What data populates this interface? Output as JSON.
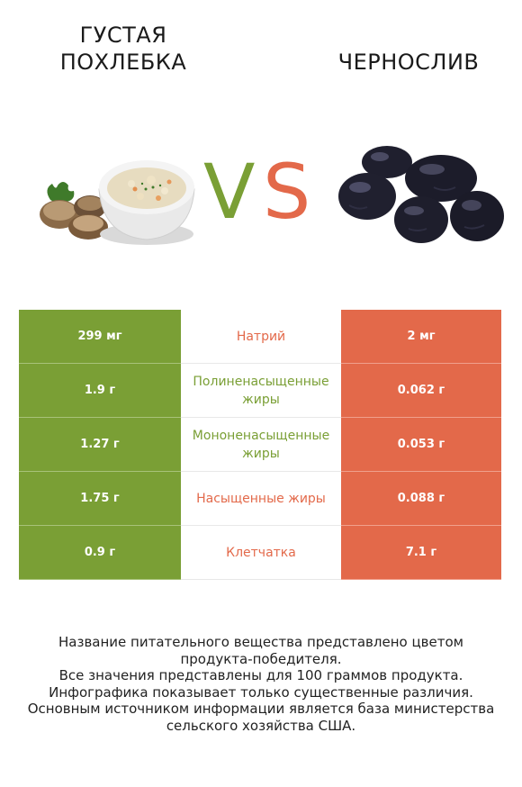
{
  "left_food": {
    "name": "ГУСТАЯ ПОХЛЕБКА",
    "color": "#7a9f35"
  },
  "right_food": {
    "name": "ЧЕРНОСЛИВ",
    "color": "#e3694a"
  },
  "vs": {
    "v": "V",
    "s": "S"
  },
  "rows": [
    {
      "left": "299 мг",
      "label": "Натрий",
      "right": "2 мг",
      "winner": "right"
    },
    {
      "left": "1.9 г",
      "label": "Полиненасыщенные жиры",
      "right": "0.062 г",
      "winner": "left"
    },
    {
      "left": "1.27 г",
      "label": "Мононенасыщенные жиры",
      "right": "0.053 г",
      "winner": "left"
    },
    {
      "left": "1.75 г",
      "label": "Насыщенные жиры",
      "right": "0.088 г",
      "winner": "right"
    },
    {
      "left": "0.9 г",
      "label": "Клетчатка",
      "right": "7.1 г",
      "winner": "right"
    }
  ],
  "footer": [
    "Название питательного вещества представлено цветом",
    "продукта-победителя.",
    "Все значения представлены для 100 граммов продукта.",
    "Инфографика показывает только существенные различия.",
    "Основным источником информации является база министерства",
    "сельского хозяйства США."
  ]
}
